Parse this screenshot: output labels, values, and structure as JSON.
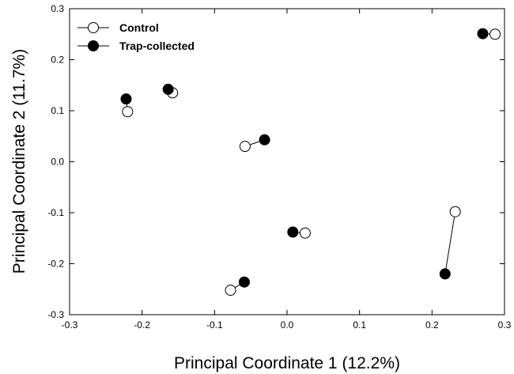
{
  "chart_data": {
    "type": "scatter",
    "xlabel": "Principal Coordinate 1 (12.2%)",
    "ylabel": "Principal Coordinate 2 (11.7%)",
    "xlim": [
      -0.3,
      0.3
    ],
    "ylim": [
      -0.3,
      0.3
    ],
    "xticks": [
      "-0.3",
      "-0.2",
      "-0.1",
      "0.0",
      "0.1",
      "0.2",
      "0.3"
    ],
    "yticks": [
      "-0.3",
      "-0.2",
      "-0.1",
      "0.0",
      "0.1",
      "0.2",
      "0.3"
    ],
    "grid": false,
    "legend_position": "top-left",
    "series": [
      {
        "name": "Control",
        "marker": "open-circle",
        "color": "#000000",
        "points": [
          {
            "x": -0.22,
            "y": 0.098
          },
          {
            "x": -0.158,
            "y": 0.135
          },
          {
            "x": -0.058,
            "y": 0.03
          },
          {
            "x": 0.025,
            "y": -0.14
          },
          {
            "x": -0.078,
            "y": -0.252
          },
          {
            "x": 0.232,
            "y": -0.098
          },
          {
            "x": 0.287,
            "y": 0.25
          }
        ]
      },
      {
        "name": "Trap-collected",
        "marker": "filled-circle",
        "color": "#000000",
        "points": [
          {
            "x": -0.222,
            "y": 0.123
          },
          {
            "x": -0.164,
            "y": 0.142
          },
          {
            "x": -0.031,
            "y": 0.043
          },
          {
            "x": 0.008,
            "y": -0.138
          },
          {
            "x": -0.059,
            "y": -0.236
          },
          {
            "x": 0.218,
            "y": -0.22
          },
          {
            "x": 0.27,
            "y": 0.251
          }
        ]
      }
    ]
  }
}
